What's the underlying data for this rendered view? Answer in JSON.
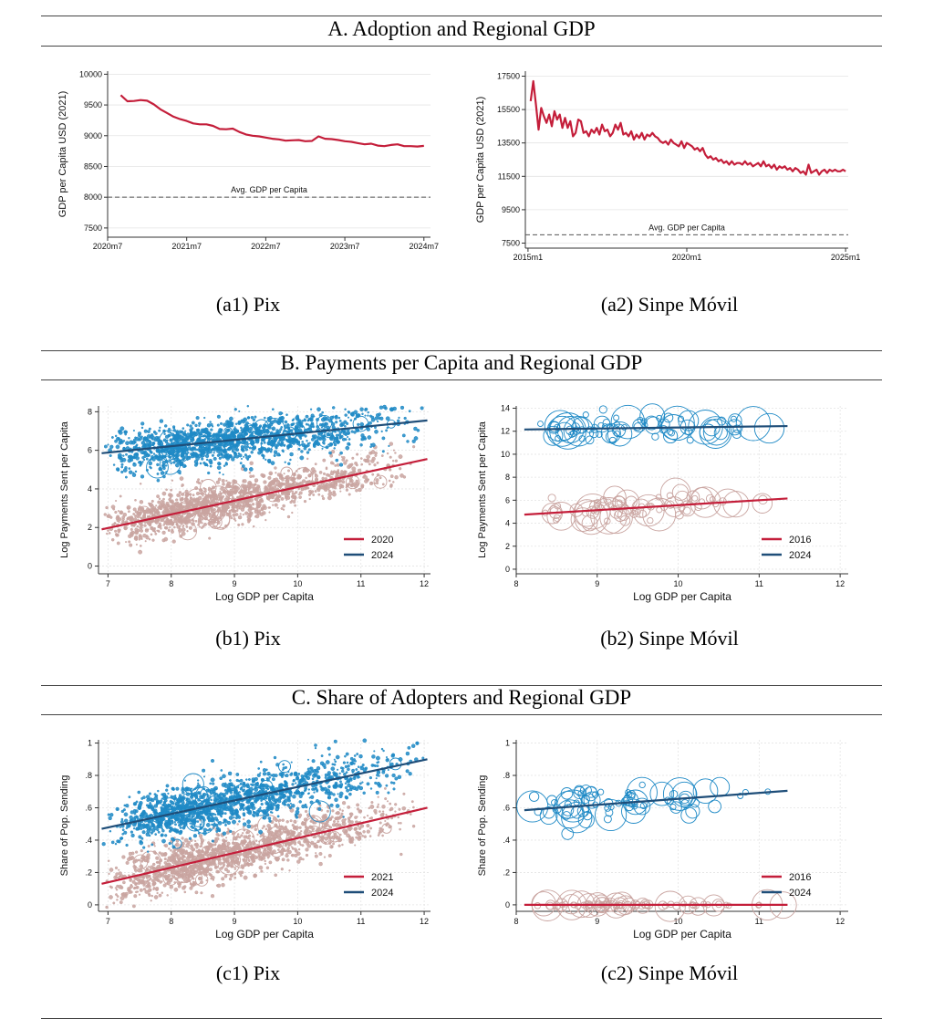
{
  "colors": {
    "red": "#c41e3a",
    "navy": "#1f4e79",
    "blue": "#1f8ac6",
    "pink": "#c9a4a0",
    "grid": "#e4e4e4"
  },
  "sections": [
    {
      "title": "A. Adoption and Regional GDP"
    },
    {
      "title": "B. Payments per Capita and Regional GDP"
    },
    {
      "title": "C. Share of Adopters and Regional GDP"
    }
  ],
  "captions": {
    "a1": "(a1) Pix",
    "a2": "(a2) Sinpe Móvil",
    "b1": "(b1) Pix",
    "b2": "(b2) Sinpe Móvil",
    "c1": "(c1) Pix",
    "c2": "(c2) Sinpe Móvil"
  },
  "chart_data": [
    {
      "id": "a1",
      "type": "line",
      "ylabel": "GDP per Capita USD (2021)",
      "xlim": [
        0,
        49
      ],
      "ylim": [
        7350,
        10050
      ],
      "xticks": [
        {
          "v": 0,
          "label": "2020m7"
        },
        {
          "v": 12,
          "label": "2021m7"
        },
        {
          "v": 24,
          "label": "2022m7"
        },
        {
          "v": 36,
          "label": "2023m7"
        },
        {
          "v": 48,
          "label": "2024m7"
        }
      ],
      "yticks": [
        7500,
        8000,
        8500,
        9000,
        9500,
        10000
      ],
      "reference": {
        "y": 8000,
        "label": "Avg. GDP per Capita"
      },
      "series": [
        {
          "x": [
            2,
            3,
            4,
            5,
            6,
            7,
            8,
            9,
            10,
            11,
            12,
            13,
            14,
            15,
            16,
            17,
            18,
            19,
            20,
            21,
            22,
            23,
            24,
            25,
            26,
            27,
            28,
            29,
            30,
            31,
            32,
            33,
            34,
            35,
            36,
            37,
            38,
            39,
            40,
            41,
            42,
            43,
            44,
            45,
            46,
            47,
            48
          ],
          "y": [
            9660,
            9560,
            9565,
            9580,
            9570,
            9510,
            9430,
            9370,
            9310,
            9270,
            9240,
            9200,
            9185,
            9185,
            9160,
            9110,
            9105,
            9115,
            9060,
            9020,
            9000,
            8990,
            8970,
            8950,
            8940,
            8920,
            8925,
            8930,
            8910,
            8915,
            8990,
            8950,
            8945,
            8930,
            8910,
            8900,
            8880,
            8860,
            8870,
            8840,
            8830,
            8850,
            8860,
            8830,
            8830,
            8825,
            8835
          ]
        }
      ]
    },
    {
      "id": "a2",
      "type": "line",
      "ylabel": "GDP per Capita USD (2021)",
      "xlim": [
        -1,
        121
      ],
      "ylim": [
        7200,
        17800
      ],
      "xticks": [
        {
          "v": 0,
          "label": "2015m1"
        },
        {
          "v": 60,
          "label": "2020m1"
        },
        {
          "v": 120,
          "label": "2025m1"
        }
      ],
      "yticks": [
        7500,
        9500,
        11500,
        13500,
        15500,
        17500
      ],
      "reference": {
        "y": 8000,
        "label": "Avg. GDP per Capita"
      },
      "series": [
        {
          "x": [
            1,
            2,
            3,
            4,
            5,
            6,
            7,
            8,
            9,
            10,
            11,
            12,
            13,
            14,
            15,
            16,
            17,
            18,
            19,
            20,
            21,
            22,
            23,
            24,
            25,
            26,
            27,
            28,
            29,
            30,
            31,
            32,
            33,
            34,
            35,
            36,
            37,
            38,
            39,
            40,
            41,
            42,
            43,
            44,
            45,
            46,
            47,
            48,
            49,
            50,
            51,
            52,
            53,
            54,
            55,
            56,
            57,
            58,
            59,
            60,
            61,
            62,
            63,
            64,
            65,
            66,
            67,
            68,
            69,
            70,
            71,
            72,
            73,
            74,
            75,
            76,
            77,
            78,
            79,
            80,
            81,
            82,
            83,
            84,
            85,
            86,
            87,
            88,
            89,
            90,
            91,
            92,
            93,
            94,
            95,
            96,
            97,
            98,
            99,
            100,
            101,
            102,
            103,
            104,
            105,
            106,
            107,
            108,
            109,
            110,
            111,
            112,
            113,
            114,
            115,
            116,
            117,
            118,
            119,
            120
          ],
          "y": [
            16000,
            17200,
            15800,
            14300,
            15600,
            15100,
            14700,
            15200,
            14500,
            15400,
            14900,
            15200,
            14400,
            15000,
            14400,
            14800,
            13900,
            14100,
            14900,
            14800,
            14100,
            14200,
            13900,
            14300,
            14100,
            14400,
            14000,
            14600,
            14200,
            14300,
            13900,
            14100,
            14600,
            14300,
            14700,
            14000,
            14100,
            13900,
            14200,
            13700,
            14000,
            13800,
            14100,
            13700,
            14000,
            13900,
            14100,
            13900,
            13800,
            13600,
            13500,
            13600,
            13400,
            13700,
            13500,
            13400,
            13300,
            13600,
            13200,
            13500,
            13400,
            13300,
            13100,
            13200,
            13000,
            13200,
            12800,
            12600,
            12700,
            12500,
            12600,
            12400,
            12500,
            12300,
            12400,
            12200,
            12400,
            12200,
            12300,
            12300,
            12200,
            12400,
            12200,
            12300,
            12100,
            12200,
            12300,
            12100,
            12400,
            12100,
            12200,
            12000,
            12200,
            11900,
            12100,
            12000,
            12100,
            11900,
            12000,
            11800,
            12000,
            11900,
            11700,
            11800,
            11600,
            12200,
            11700,
            11800,
            11900,
            11600,
            11800,
            11900,
            11700,
            11900,
            11800,
            11900,
            11800,
            11800,
            11900,
            11800
          ]
        }
      ]
    },
    {
      "id": "b1",
      "type": "scatter",
      "xlabel": "Log GDP per Capita",
      "ylabel": "Log Payments Sent per Capita",
      "xlim": [
        6.85,
        12.1
      ],
      "ylim": [
        -0.4,
        8.3
      ],
      "xticks": [
        7,
        8,
        9,
        10,
        11,
        12
      ],
      "yticks": [
        0,
        2,
        4,
        6,
        8
      ],
      "cloud": {
        "n": 1400,
        "xmin": 6.9,
        "xmax": 12,
        "xmode": 8.1,
        "sd": 0.55,
        "bubble_max": 12
      },
      "series": [
        {
          "name": "2020",
          "color": "#c9a4a0",
          "line_color": "#c41e3a",
          "fit": [
            [
              6.9,
              1.9
            ],
            [
              12.05,
              5.55
            ]
          ]
        },
        {
          "name": "2024",
          "color": "#1f8ac6",
          "line_color": "#1f4e79",
          "fit": [
            [
              6.9,
              5.85
            ],
            [
              12.05,
              7.55
            ]
          ]
        }
      ]
    },
    {
      "id": "b2",
      "type": "scatter",
      "xlabel": "Log GDP per Capita",
      "ylabel": "Log Payments Sent per Capita",
      "xlim": [
        8.0,
        12.1
      ],
      "ylim": [
        -0.4,
        14.2
      ],
      "xticks": [
        8,
        9,
        10,
        11,
        12
      ],
      "yticks": [
        0,
        2,
        4,
        6,
        8,
        10,
        12,
        14
      ],
      "cloud": {
        "n": 80,
        "xmin": 8.1,
        "xmax": 11.4,
        "xmode": 8.9,
        "sd": 0.5,
        "bubble_max": 20
      },
      "series": [
        {
          "name": "2016",
          "color": "#c9a4a0",
          "line_color": "#c41e3a",
          "fit": [
            [
              8.1,
              4.75
            ],
            [
              11.35,
              6.15
            ]
          ]
        },
        {
          "name": "2024",
          "color": "#1f8ac6",
          "line_color": "#1f4e79",
          "fit": [
            [
              8.1,
              12.15
            ],
            [
              11.35,
              12.45
            ]
          ]
        }
      ]
    },
    {
      "id": "c1",
      "type": "scatter",
      "xlabel": "Log GDP per Capita",
      "ylabel": "Share of Pop. Sending",
      "xlim": [
        6.85,
        12.1
      ],
      "ylim": [
        -0.04,
        1.02
      ],
      "xticks": [
        7,
        8,
        9,
        10,
        11,
        12
      ],
      "yticks": [
        0,
        0.2,
        0.4,
        0.6,
        0.8,
        1
      ],
      "ytick_labels": [
        "0",
        ".2",
        ".4",
        ".6",
        ".8",
        "1"
      ],
      "cloud": {
        "n": 1400,
        "xmin": 6.9,
        "xmax": 12,
        "xmode": 8.1,
        "sd": 0.075,
        "bubble_max": 12
      },
      "series": [
        {
          "name": "2021",
          "color": "#c9a4a0",
          "line_color": "#c41e3a",
          "fit": [
            [
              6.9,
              0.13
            ],
            [
              12.05,
              0.6
            ]
          ]
        },
        {
          "name": "2024",
          "color": "#1f8ac6",
          "line_color": "#1f4e79",
          "fit": [
            [
              6.9,
              0.47
            ],
            [
              12.05,
              0.9
            ]
          ]
        }
      ]
    },
    {
      "id": "c2",
      "type": "scatter",
      "xlabel": "Log GDP per Capita",
      "ylabel": "Share of Pop. Sending",
      "xlim": [
        8.0,
        12.1
      ],
      "ylim": [
        -0.04,
        1.02
      ],
      "xticks": [
        8,
        9,
        10,
        11,
        12
      ],
      "yticks": [
        0,
        0.2,
        0.4,
        0.6,
        0.8,
        1
      ],
      "ytick_labels": [
        "0",
        ".2",
        ".4",
        ".6",
        ".8",
        "1"
      ],
      "cloud": {
        "n": 80,
        "xmin": 8.1,
        "xmax": 11.4,
        "xmode": 8.9,
        "sd": 0.05,
        "bubble_max": 20
      },
      "series": [
        {
          "name": "2016",
          "color": "#c9a4a0",
          "line_color": "#c41e3a",
          "fit": [
            [
              8.1,
              0.0
            ],
            [
              11.35,
              0.0
            ]
          ],
          "spread": 0.004
        },
        {
          "name": "2024",
          "color": "#1f8ac6",
          "line_color": "#1f4e79",
          "fit": [
            [
              8.1,
              0.585
            ],
            [
              11.35,
              0.705
            ]
          ]
        }
      ]
    }
  ]
}
